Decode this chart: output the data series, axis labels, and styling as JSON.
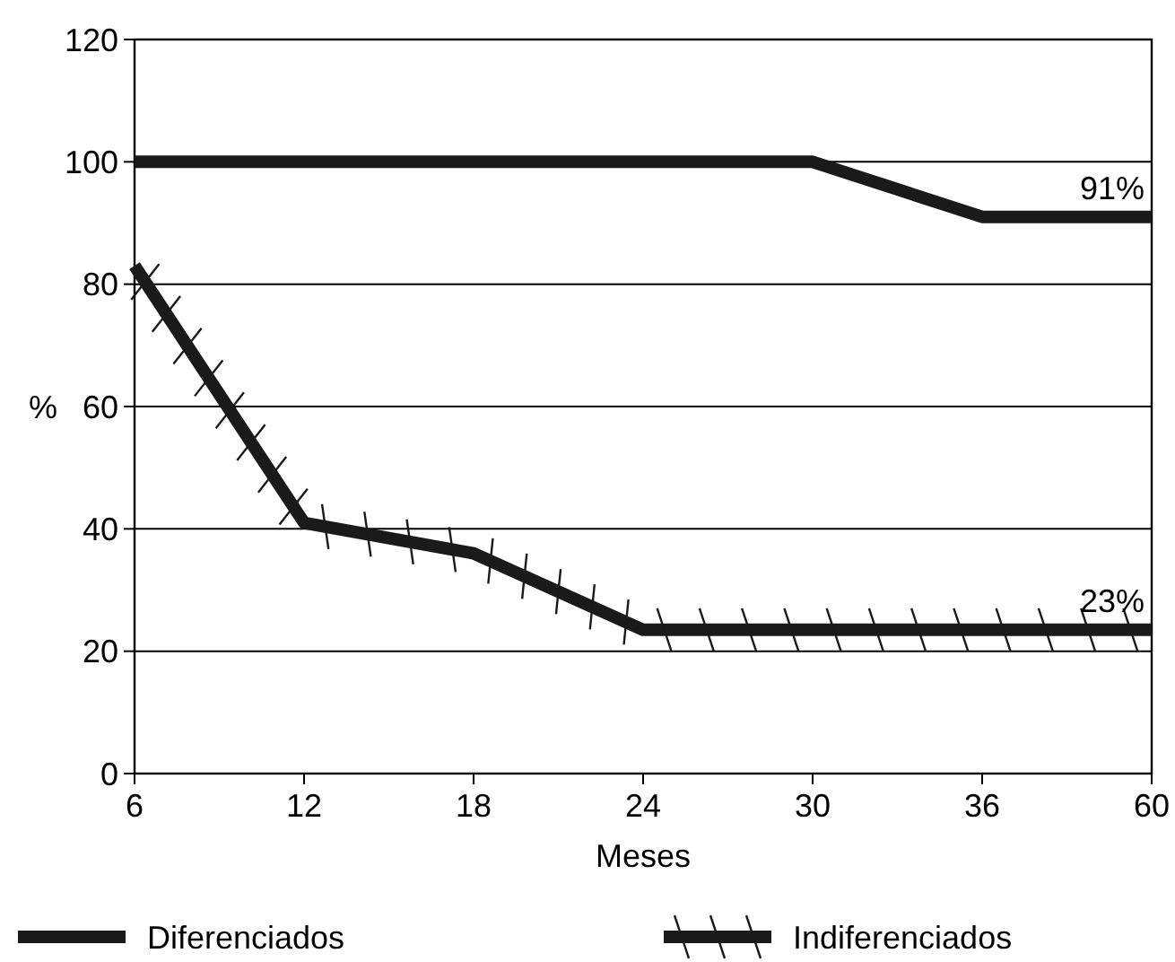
{
  "chart_data": {
    "type": "line",
    "xlabel": "Meses",
    "ylabel": "%",
    "categories": [
      "6",
      "12",
      "18",
      "24",
      "30",
      "36",
      "60"
    ],
    "series": [
      {
        "name": "Diferenciados",
        "color": "#1a1a1a",
        "values": [
          100,
          100,
          100,
          100,
          100,
          91,
          91
        ]
      },
      {
        "name": "Indiferenciados",
        "color": "#1a1a1a",
        "values": [
          83,
          41,
          36,
          23.5,
          23.5,
          23.5,
          23.5
        ]
      }
    ],
    "ylim": [
      0,
      120
    ],
    "yticks": [
      0,
      20,
      40,
      60,
      80,
      100,
      120
    ],
    "grid": "y",
    "legend": "bottom",
    "marker": "none",
    "line_style": "solid",
    "annotations": [
      {
        "text": "91%",
        "x": "60",
        "y": 91
      },
      {
        "text": "23%",
        "x": "60",
        "y": 23.5
      }
    ]
  }
}
